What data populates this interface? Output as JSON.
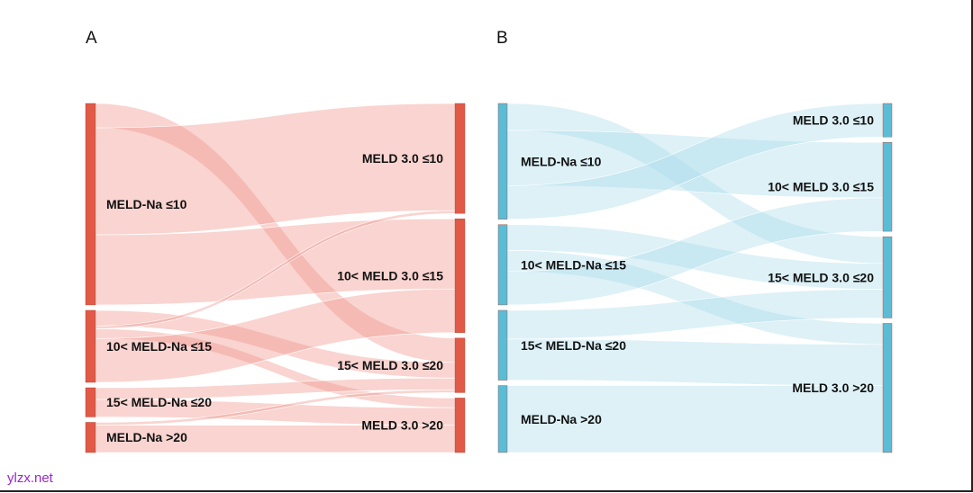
{
  "panels": [
    {
      "letter": "A",
      "node_color": "#e05a47",
      "link_color": "#f0938a",
      "left_nodes": [
        "MELD-Na ≤10",
        "10< MELD-Na ≤15",
        "15< MELD-Na ≤20",
        "MELD-Na >20"
      ],
      "right_nodes": [
        "MELD 3.0 ≤10",
        "10< MELD 3.0 ≤15",
        "15< MELD 3.0 ≤20",
        "MELD 3.0 >20"
      ],
      "flows": [
        {
          "from": 0,
          "to": 2,
          "value": 25
        },
        {
          "from": 0,
          "to": 0,
          "value": 110
        },
        {
          "from": 0,
          "to": 1,
          "value": 72
        },
        {
          "from": 1,
          "to": 2,
          "value": 16
        },
        {
          "from": 1,
          "to": 0,
          "value": 3
        },
        {
          "from": 1,
          "to": 3,
          "value": 10
        },
        {
          "from": 1,
          "to": 1,
          "value": 45
        },
        {
          "from": 2,
          "to": 2,
          "value": 12
        },
        {
          "from": 2,
          "to": 3,
          "value": 18
        },
        {
          "from": 3,
          "to": 2,
          "value": 3
        },
        {
          "from": 3,
          "to": 3,
          "value": 28
        }
      ]
    },
    {
      "letter": "B",
      "node_color": "#5bbcd6",
      "link_color": "#a9dbea",
      "left_nodes": [
        "MELD-Na ≤10",
        "10< MELD-Na ≤15",
        "15< MELD-Na ≤20",
        "MELD-Na >20"
      ],
      "right_nodes": [
        "MELD 3.0 ≤10",
        "10< MELD 3.0 ≤15",
        "15< MELD 3.0 ≤20",
        "MELD 3.0 >20"
      ],
      "flows": [
        {
          "from": 0,
          "to": 2,
          "value": 28
        },
        {
          "from": 0,
          "to": 1,
          "value": 58
        },
        {
          "from": 0,
          "to": 0,
          "value": 35
        },
        {
          "from": 1,
          "to": 2,
          "value": 27
        },
        {
          "from": 1,
          "to": 3,
          "value": 22
        },
        {
          "from": 1,
          "to": 1,
          "value": 35
        },
        {
          "from": 2,
          "to": 2,
          "value": 30
        },
        {
          "from": 2,
          "to": 3,
          "value": 43
        },
        {
          "from": 3,
          "to": 3,
          "value": 70
        }
      ]
    }
  ],
  "watermark": "ylzx.net"
}
